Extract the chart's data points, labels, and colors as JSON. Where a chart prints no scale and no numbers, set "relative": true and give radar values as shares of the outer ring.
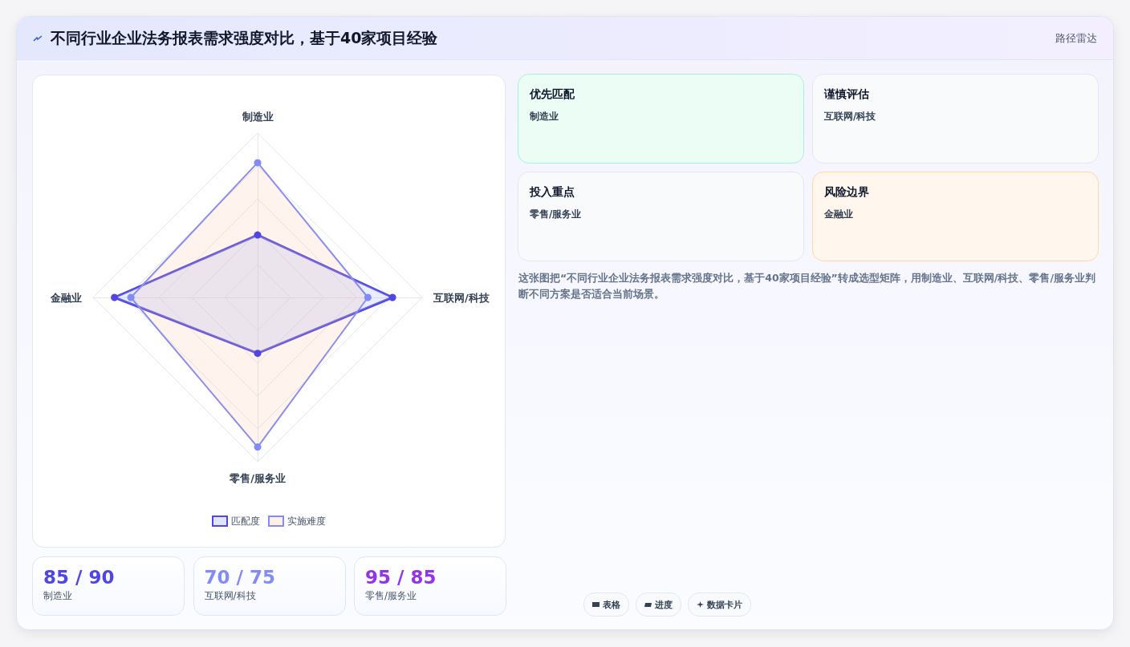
{
  "chart_data": [
    {
      "type": "other",
      "title": "不同行业企业法务报表需求强度对比，基于40家项目经验",
      "subtitle": "路径雷达"
    },
    {
      "type": "radar",
      "relative": true,
      "categories": [
        "制造业",
        "互联网/科技",
        "零售/服务业",
        "金融业"
      ],
      "legend": "bottom",
      "marker": "circle",
      "series": [
        {
          "name": "匹配度",
          "color": "#4f46e5",
          "values": [
            0.38,
            0.82,
            0.34,
            0.87
          ]
        },
        {
          "name": "实施难度",
          "color": "#818cf8",
          "values": [
            0.82,
            0.67,
            0.91,
            0.77
          ]
        }
      ]
    },
    {
      "type": "other",
      "title": "优先匹配",
      "subtitle": "制造业",
      "color": "#ecfdf5"
    },
    {
      "type": "other",
      "title": "谨慎评估",
      "subtitle": "互联网/科技",
      "color": "#f8fafc"
    },
    {
      "type": "other",
      "title": "投入重点",
      "subtitle": "零售/服务业",
      "color": "#f8fafc"
    },
    {
      "type": "other",
      "title": "风险边界",
      "subtitle": "金融业",
      "color": "#fff7ed"
    },
    {
      "type": "other",
      "annotations": [
        "这张图把“不同行业企业法务报表需求强度对比，基于40家项目经验”转成选型矩阵，用制造业、互联网/科技、零售/服务业判断不同方案是否适合当前场景。"
      ]
    },
    {
      "type": "other",
      "title": "85 / 90",
      "subtitle": "制造业",
      "color": "#4f46e5"
    },
    {
      "type": "other",
      "title": "70 / 75",
      "subtitle": "互联网/科技",
      "color": "#818cf8"
    },
    {
      "type": "other",
      "title": "95 / 85",
      "subtitle": "零售/服务业",
      "color": "#9333ea"
    },
    {
      "type": "other",
      "annotations": [
        "表格",
        "进度",
        "数据卡片"
      ]
    }
  ]
}
